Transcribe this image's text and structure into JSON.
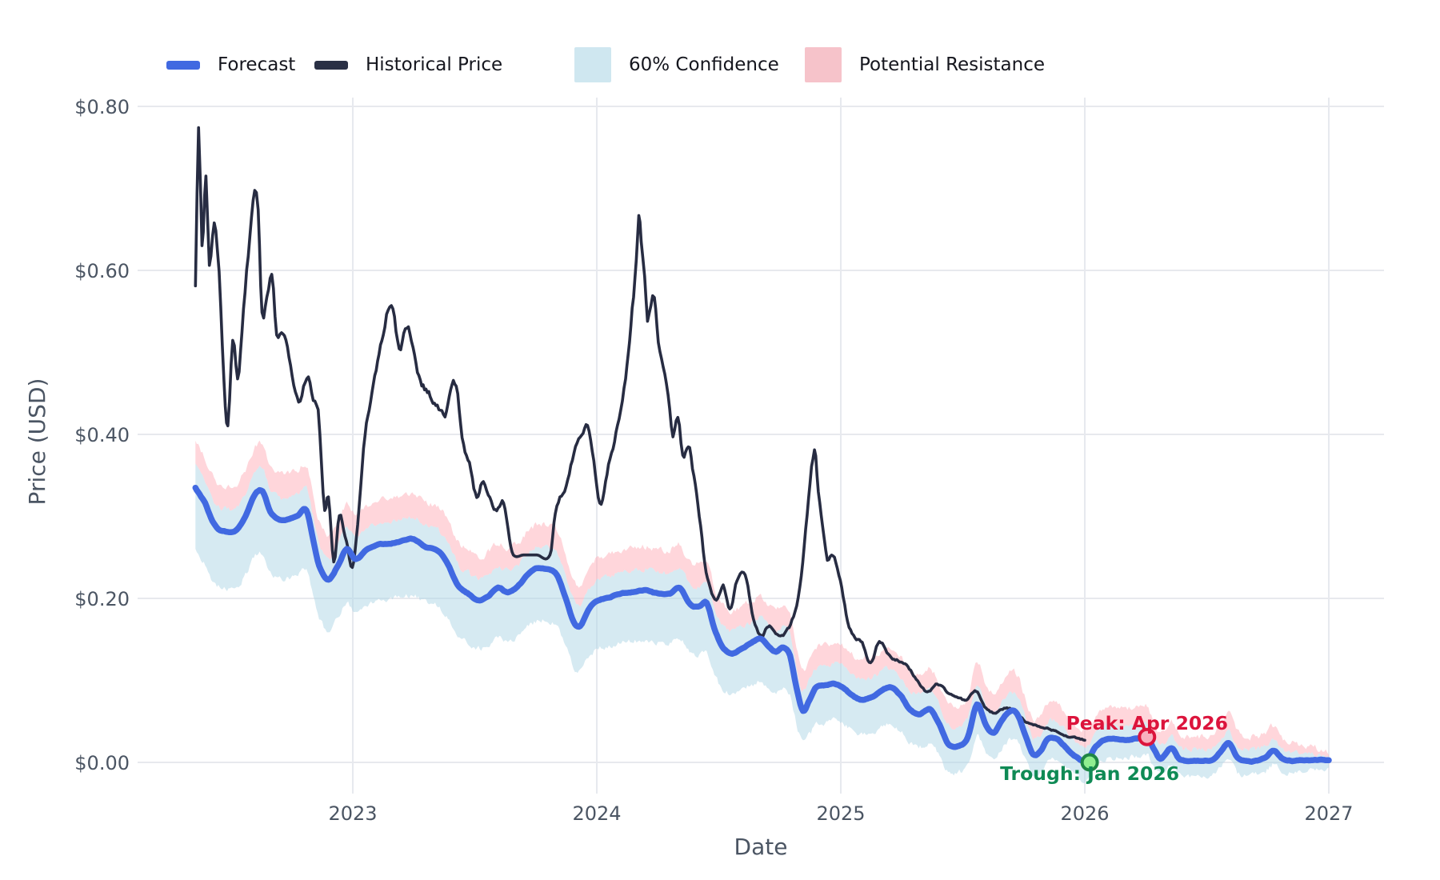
{
  "chart_data": {
    "type": "line",
    "title": "",
    "xlabel": "Date",
    "ylabel": "Price (USD)",
    "xlim": [
      2022.12,
      2027.23
    ],
    "ylim": [
      -0.038,
      0.822
    ],
    "grid": true,
    "legend_position": "top",
    "legend": [
      {
        "label": "Forecast",
        "swatch": "line",
        "color": "#4169E1"
      },
      {
        "label": "Historical Price",
        "swatch": "line",
        "color": "#2A3045"
      },
      {
        "label": "60% Confidence",
        "swatch": "box",
        "color": "#CFE7F0"
      },
      {
        "label": "Potential Resistance",
        "swatch": "box",
        "color": "#F6C3CA"
      }
    ],
    "colors": {
      "forecast": "#4169E1",
      "historical": "#272C42",
      "confidence_fill": "rgba(173,214,230,0.50)",
      "resistance_fill": "rgba(255,174,184,0.50)",
      "grid": "#E7E9EE",
      "axis_text": "#4B5563",
      "legend_text": "#15161E",
      "background": "#FFFFFF"
    },
    "ticks": {
      "x": [
        {
          "value": 2023,
          "label": "2023"
        },
        {
          "value": 2024,
          "label": "2024"
        },
        {
          "value": 2025,
          "label": "2025"
        },
        {
          "value": 2026,
          "label": "2026"
        },
        {
          "value": 2027,
          "label": "2027"
        }
      ],
      "y": [
        {
          "value": 0.0,
          "label": "$0.00"
        },
        {
          "value": 0.2,
          "label": "$0.20"
        },
        {
          "value": 0.4,
          "label": "$0.40"
        },
        {
          "value": 0.6,
          "label": "$0.60"
        },
        {
          "value": 0.8,
          "label": "$0.80"
        }
      ]
    },
    "annotations": [
      {
        "text": "Peak: Apr 2026",
        "x": 2026.255,
        "y": 0.031,
        "color": "#DC143C",
        "marker_fill": "#F8B0BF",
        "marker_stroke": "#DC143C",
        "label_position": "above"
      },
      {
        "text": "Trough: Jan 2026",
        "x": 2026.02,
        "y": 0.0,
        "color": "#0F8A55",
        "marker_fill": "#90EE90",
        "marker_stroke": "#1E8643",
        "label_position": "below"
      }
    ],
    "bands": {
      "confidence_label": "60% Confidence",
      "resistance_label": "Potential Resistance",
      "upper_offset_base": 0.0235,
      "upper_offset_slope": 0.012,
      "resistance_offset_base": 0.0245,
      "resistance_offset_slope": 0.012,
      "lower_offset_base": 0.032,
      "lower_offset_slope": 0.135,
      "lower_clip": -0.03
    },
    "series": {
      "historical": {
        "name": "Historical Price",
        "points": [
          [
            2022.355,
            0.585
          ],
          [
            2022.368,
            0.775
          ],
          [
            2022.382,
            0.63
          ],
          [
            2022.398,
            0.715
          ],
          [
            2022.412,
            0.605
          ],
          [
            2022.432,
            0.66
          ],
          [
            2022.452,
            0.6
          ],
          [
            2022.472,
            0.46
          ],
          [
            2022.488,
            0.415
          ],
          [
            2022.508,
            0.52
          ],
          [
            2022.528,
            0.47
          ],
          [
            2022.552,
            0.555
          ],
          [
            2022.578,
            0.645
          ],
          [
            2022.598,
            0.705
          ],
          [
            2022.612,
            0.69
          ],
          [
            2022.628,
            0.56
          ],
          [
            2022.648,
            0.575
          ],
          [
            2022.668,
            0.59
          ],
          [
            2022.688,
            0.525
          ],
          [
            2022.708,
            0.535
          ],
          [
            2022.732,
            0.52
          ],
          [
            2022.758,
            0.465
          ],
          [
            2022.778,
            0.445
          ],
          [
            2022.798,
            0.462
          ],
          [
            2022.818,
            0.475
          ],
          [
            2022.838,
            0.44
          ],
          [
            2022.858,
            0.427
          ],
          [
            2022.872,
            0.36
          ],
          [
            2022.885,
            0.305
          ],
          [
            2022.9,
            0.318
          ],
          [
            2022.922,
            0.245
          ],
          [
            2022.945,
            0.3
          ],
          [
            2022.968,
            0.278
          ],
          [
            2022.998,
            0.24
          ],
          [
            2023.02,
            0.29
          ],
          [
            2023.05,
            0.4
          ],
          [
            2023.09,
            0.472
          ],
          [
            2023.125,
            0.523
          ],
          [
            2023.158,
            0.562
          ],
          [
            2023.19,
            0.502
          ],
          [
            2023.228,
            0.532
          ],
          [
            2023.265,
            0.48
          ],
          [
            2023.3,
            0.458
          ],
          [
            2023.34,
            0.44
          ],
          [
            2023.378,
            0.424
          ],
          [
            2023.418,
            0.462
          ],
          [
            2023.448,
            0.4
          ],
          [
            2023.478,
            0.365
          ],
          [
            2023.508,
            0.325
          ],
          [
            2023.535,
            0.347
          ],
          [
            2023.562,
            0.323
          ],
          [
            2023.59,
            0.307
          ],
          [
            2023.618,
            0.317
          ],
          [
            2023.642,
            0.272
          ],
          [
            2023.658,
            0.253
          ],
          [
            2023.7,
            0.253
          ],
          [
            2023.755,
            0.253
          ],
          [
            2023.808,
            0.253
          ],
          [
            2023.83,
            0.3
          ],
          [
            2023.868,
            0.332
          ],
          [
            2023.9,
            0.367
          ],
          [
            2023.932,
            0.4
          ],
          [
            2023.962,
            0.415
          ],
          [
            2023.988,
            0.372
          ],
          [
            2024.012,
            0.317
          ],
          [
            2024.048,
            0.36
          ],
          [
            2024.085,
            0.41
          ],
          [
            2024.118,
            0.468
          ],
          [
            2024.145,
            0.553
          ],
          [
            2024.162,
            0.607
          ],
          [
            2024.172,
            0.665
          ],
          [
            2024.182,
            0.632
          ],
          [
            2024.196,
            0.6
          ],
          [
            2024.208,
            0.546
          ],
          [
            2024.222,
            0.565
          ],
          [
            2024.236,
            0.578
          ],
          [
            2024.252,
            0.52
          ],
          [
            2024.272,
            0.478
          ],
          [
            2024.292,
            0.445
          ],
          [
            2024.312,
            0.4
          ],
          [
            2024.332,
            0.422
          ],
          [
            2024.352,
            0.376
          ],
          [
            2024.375,
            0.392
          ],
          [
            2024.398,
            0.35
          ],
          [
            2024.42,
            0.3
          ],
          [
            2024.442,
            0.246
          ],
          [
            2024.465,
            0.213
          ],
          [
            2024.49,
            0.198
          ],
          [
            2024.518,
            0.216
          ],
          [
            2024.545,
            0.19
          ],
          [
            2024.575,
            0.222
          ],
          [
            2024.608,
            0.232
          ],
          [
            2024.642,
            0.176
          ],
          [
            2024.675,
            0.155
          ],
          [
            2024.708,
            0.167
          ],
          [
            2024.74,
            0.154
          ],
          [
            2024.77,
            0.158
          ],
          [
            2024.8,
            0.172
          ],
          [
            2024.832,
            0.212
          ],
          [
            2024.862,
            0.3
          ],
          [
            2024.892,
            0.376
          ],
          [
            2024.908,
            0.33
          ],
          [
            2024.925,
            0.283
          ],
          [
            2024.945,
            0.243
          ],
          [
            2024.968,
            0.252
          ],
          [
            2024.998,
            0.225
          ],
          [
            2025.028,
            0.175
          ],
          [
            2025.058,
            0.155
          ],
          [
            2025.088,
            0.147
          ],
          [
            2025.122,
            0.12
          ],
          [
            2025.158,
            0.146
          ],
          [
            2025.195,
            0.132
          ],
          [
            2025.235,
            0.125
          ],
          [
            2025.275,
            0.115
          ],
          [
            2025.315,
            0.1
          ],
          [
            2025.355,
            0.086
          ],
          [
            2025.395,
            0.096
          ],
          [
            2025.435,
            0.086
          ],
          [
            2025.475,
            0.08
          ],
          [
            2025.515,
            0.076
          ],
          [
            2025.555,
            0.086
          ],
          [
            2025.595,
            0.066
          ],
          [
            2025.635,
            0.06
          ],
          [
            2025.675,
            0.066
          ],
          [
            2025.715,
            0.062
          ],
          [
            2025.755,
            0.05
          ],
          [
            2025.795,
            0.047
          ],
          [
            2025.835,
            0.043
          ],
          [
            2025.875,
            0.039
          ],
          [
            2025.915,
            0.033
          ],
          [
            2025.958,
            0.03
          ],
          [
            2026.0,
            0.027
          ]
        ]
      },
      "forecast": {
        "name": "Forecast",
        "points": [
          [
            2022.355,
            0.335
          ],
          [
            2022.395,
            0.316
          ],
          [
            2022.425,
            0.294
          ],
          [
            2022.455,
            0.284
          ],
          [
            2022.52,
            0.284
          ],
          [
            2022.56,
            0.301
          ],
          [
            2022.6,
            0.328
          ],
          [
            2022.63,
            0.331
          ],
          [
            2022.662,
            0.306
          ],
          [
            2022.7,
            0.296
          ],
          [
            2022.74,
            0.297
          ],
          [
            2022.775,
            0.301
          ],
          [
            2022.81,
            0.308
          ],
          [
            2022.838,
            0.272
          ],
          [
            2022.862,
            0.241
          ],
          [
            2022.9,
            0.223
          ],
          [
            2022.94,
            0.241
          ],
          [
            2022.975,
            0.261
          ],
          [
            2023.012,
            0.249
          ],
          [
            2023.055,
            0.259
          ],
          [
            2023.1,
            0.266
          ],
          [
            2023.15,
            0.267
          ],
          [
            2023.2,
            0.27
          ],
          [
            2023.25,
            0.272
          ],
          [
            2023.3,
            0.262
          ],
          [
            2023.35,
            0.257
          ],
          [
            2023.39,
            0.241
          ],
          [
            2023.43,
            0.216
          ],
          [
            2023.47,
            0.206
          ],
          [
            2023.515,
            0.198
          ],
          [
            2023.555,
            0.203
          ],
          [
            2023.595,
            0.214
          ],
          [
            2023.635,
            0.208
          ],
          [
            2023.675,
            0.214
          ],
          [
            2023.715,
            0.228
          ],
          [
            2023.755,
            0.236
          ],
          [
            2023.795,
            0.236
          ],
          [
            2023.835,
            0.229
          ],
          [
            2023.872,
            0.201
          ],
          [
            2023.905,
            0.172
          ],
          [
            2023.932,
            0.166
          ],
          [
            2023.965,
            0.185
          ],
          [
            2024.0,
            0.196
          ],
          [
            2024.05,
            0.201
          ],
          [
            2024.1,
            0.206
          ],
          [
            2024.15,
            0.208
          ],
          [
            2024.2,
            0.21
          ],
          [
            2024.25,
            0.206
          ],
          [
            2024.3,
            0.206
          ],
          [
            2024.34,
            0.212
          ],
          [
            2024.38,
            0.192
          ],
          [
            2024.42,
            0.189
          ],
          [
            2024.45,
            0.193
          ],
          [
            2024.482,
            0.162
          ],
          [
            2024.515,
            0.141
          ],
          [
            2024.555,
            0.134
          ],
          [
            2024.6,
            0.141
          ],
          [
            2024.64,
            0.147
          ],
          [
            2024.672,
            0.151
          ],
          [
            2024.705,
            0.141
          ],
          [
            2024.735,
            0.135
          ],
          [
            2024.765,
            0.141
          ],
          [
            2024.792,
            0.131
          ],
          [
            2024.818,
            0.092
          ],
          [
            2024.845,
            0.063
          ],
          [
            2024.872,
            0.076
          ],
          [
            2024.9,
            0.091
          ],
          [
            2024.935,
            0.093
          ],
          [
            2024.97,
            0.096
          ],
          [
            2025.005,
            0.093
          ],
          [
            2025.045,
            0.083
          ],
          [
            2025.085,
            0.076
          ],
          [
            2025.125,
            0.079
          ],
          [
            2025.165,
            0.086
          ],
          [
            2025.205,
            0.091
          ],
          [
            2025.245,
            0.081
          ],
          [
            2025.285,
            0.063
          ],
          [
            2025.325,
            0.059
          ],
          [
            2025.365,
            0.065
          ],
          [
            2025.405,
            0.046
          ],
          [
            2025.44,
            0.023
          ],
          [
            2025.48,
            0.021
          ],
          [
            2025.52,
            0.031
          ],
          [
            2025.558,
            0.071
          ],
          [
            2025.595,
            0.046
          ],
          [
            2025.628,
            0.036
          ],
          [
            2025.66,
            0.051
          ],
          [
            2025.698,
            0.063
          ],
          [
            2025.728,
            0.056
          ],
          [
            2025.758,
            0.031
          ],
          [
            2025.788,
            0.009
          ],
          [
            2025.818,
            0.013
          ],
          [
            2025.848,
            0.029
          ],
          [
            2025.878,
            0.03
          ],
          [
            2025.908,
            0.023
          ],
          [
            2025.938,
            0.013
          ],
          [
            2025.968,
            0.006
          ],
          [
            2026.005,
            0.001
          ],
          [
            2026.045,
            0.019
          ],
          [
            2026.085,
            0.027
          ],
          [
            2026.13,
            0.028
          ],
          [
            2026.175,
            0.027
          ],
          [
            2026.21,
            0.029
          ],
          [
            2026.255,
            0.031
          ],
          [
            2026.285,
            0.016
          ],
          [
            2026.31,
            0.005
          ],
          [
            2026.355,
            0.018
          ],
          [
            2026.385,
            0.005
          ],
          [
            2026.43,
            0.002
          ],
          [
            2026.475,
            0.002
          ],
          [
            2026.52,
            0.003
          ],
          [
            2026.555,
            0.013
          ],
          [
            2026.59,
            0.024
          ],
          [
            2026.625,
            0.007
          ],
          [
            2026.66,
            0.002
          ],
          [
            2026.7,
            0.002
          ],
          [
            2026.735,
            0.005
          ],
          [
            2026.775,
            0.014
          ],
          [
            2026.812,
            0.004
          ],
          [
            2026.85,
            0.002
          ],
          [
            2026.9,
            0.002
          ],
          [
            2026.95,
            0.002
          ],
          [
            2027.0,
            0.002
          ]
        ]
      }
    }
  }
}
